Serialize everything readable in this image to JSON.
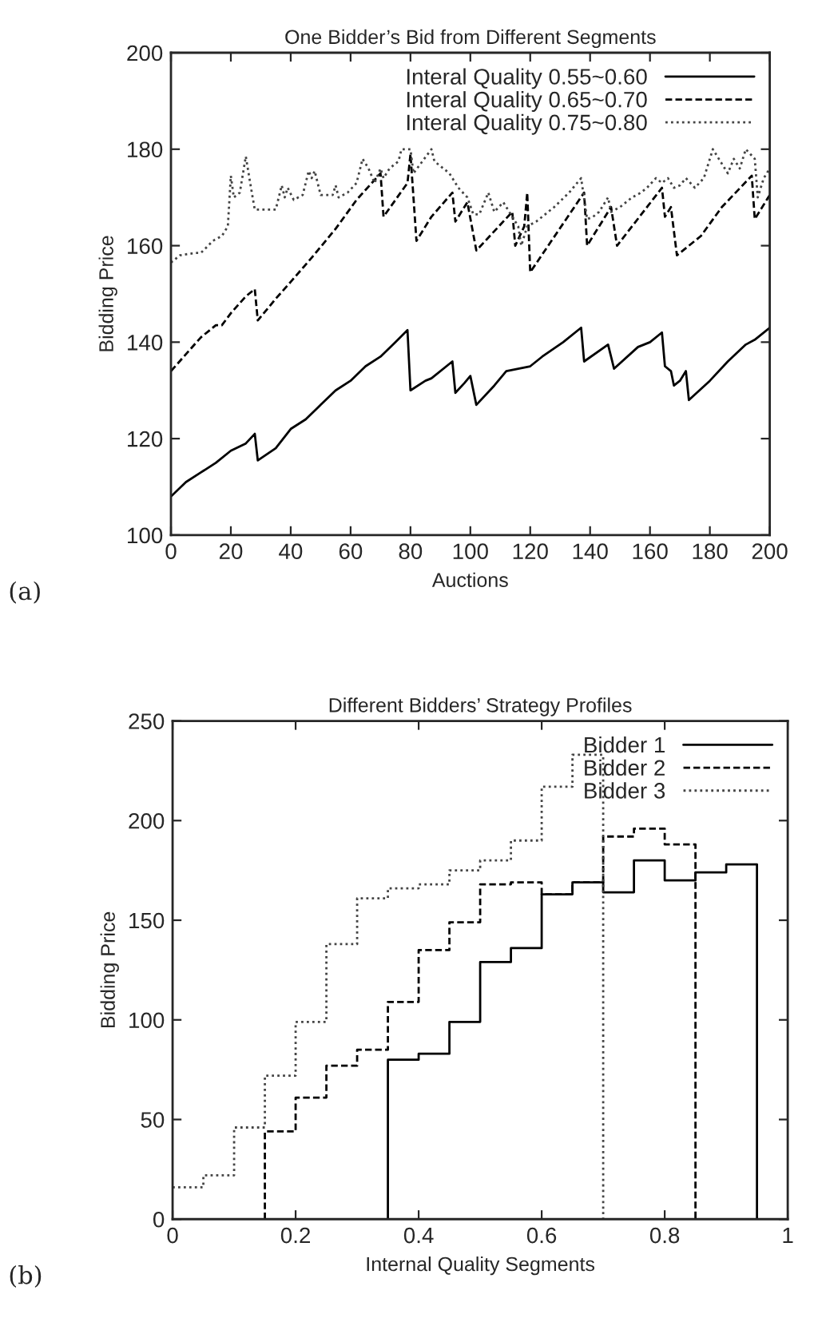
{
  "chart_data": [
    {
      "type": "line",
      "title": "One Bidder’s Bid from Different Segments",
      "xlabel": "Auctions",
      "ylabel": "Bidding Price",
      "xlim": [
        0,
        200
      ],
      "ylim": [
        100,
        200
      ],
      "xticks": [
        0,
        20,
        40,
        60,
        80,
        100,
        120,
        140,
        160,
        180,
        200
      ],
      "yticks": [
        100,
        120,
        140,
        160,
        180,
        200
      ],
      "legend": "top right",
      "grid": false,
      "annotations": [
        "(a)"
      ],
      "series": [
        {
          "name": "Interal Quality 0.55~0.60",
          "color": "#000000",
          "line_style": "solid",
          "x": [
            0,
            5,
            10,
            15,
            20,
            25,
            28,
            29,
            35,
            40,
            45,
            50,
            55,
            60,
            65,
            70,
            75,
            79,
            80,
            85,
            87,
            94,
            95,
            98,
            100,
            102,
            108,
            112,
            116,
            120,
            124,
            131,
            137,
            138,
            146,
            148,
            156,
            160,
            164,
            165,
            167,
            168,
            170,
            172,
            173,
            180,
            186,
            192,
            195,
            200
          ],
          "values": [
            108,
            111,
            113,
            115,
            117.5,
            119,
            121,
            115.5,
            118,
            122,
            124,
            127,
            130,
            132,
            135,
            137,
            140,
            142.5,
            130,
            132,
            132.5,
            136,
            129.5,
            131.5,
            133,
            127,
            131,
            134,
            134.5,
            135,
            137,
            140,
            143,
            136,
            139.5,
            134.5,
            139,
            140,
            142,
            135,
            134,
            131,
            132,
            134,
            128,
            132,
            136,
            139.5,
            140.5,
            143
          ]
        },
        {
          "name": "Interal Quality 0.65~0.70",
          "color": "#000000",
          "line_style": "dashed",
          "x": [
            0,
            5,
            10,
            15,
            17,
            20,
            25,
            28,
            29,
            35,
            40,
            47,
            55,
            62,
            70,
            71,
            79,
            80,
            82,
            87,
            94,
            95,
            99,
            102,
            114,
            115,
            118,
            119,
            120,
            138,
            139,
            147,
            149,
            164,
            165,
            167,
            169,
            177,
            184,
            194,
            195,
            200
          ],
          "values": [
            134,
            137.5,
            141,
            143.5,
            143.5,
            146,
            149.5,
            151,
            144.5,
            149,
            152.5,
            157.5,
            163.5,
            169.5,
            175,
            166,
            173,
            179,
            161,
            166,
            171,
            165,
            169,
            159,
            167,
            160,
            164,
            171,
            154.5,
            171,
            160,
            168,
            160,
            172,
            166,
            168,
            158,
            162,
            168,
            174.5,
            165.5,
            170.5
          ]
        },
        {
          "name": "Interal Quality 0.75~0.80",
          "color": "#444444",
          "line_style": "dotted",
          "x": [
            0,
            3,
            8,
            10,
            14,
            17,
            19,
            20,
            21,
            23,
            25,
            27,
            28,
            31,
            35,
            37,
            38,
            39,
            41,
            44,
            46,
            47,
            48,
            50,
            54,
            55,
            56,
            59,
            62,
            64,
            66,
            68,
            70,
            71,
            73,
            76,
            77,
            80,
            81,
            84,
            87,
            88,
            91,
            93,
            96,
            99,
            101,
            103,
            106,
            108,
            111,
            114,
            116,
            117,
            119,
            122,
            125,
            128,
            133,
            137,
            139,
            141,
            143,
            146,
            147,
            150,
            154,
            157,
            159,
            162,
            164,
            166,
            168,
            170,
            172,
            175,
            178,
            181,
            184,
            186,
            188,
            190,
            192,
            195,
            196,
            198,
            200
          ],
          "values": [
            156.5,
            158,
            158.5,
            158.5,
            161,
            162,
            164,
            174.5,
            170,
            171,
            178.5,
            171,
            167.5,
            167.5,
            167.5,
            172.5,
            170,
            172,
            169.5,
            170.5,
            175.5,
            174,
            175.5,
            170.5,
            170.5,
            172.5,
            170,
            171,
            173,
            178,
            176,
            173,
            176,
            174,
            176,
            177.5,
            180,
            180,
            175,
            177.5,
            180,
            177.5,
            176,
            175,
            172,
            170,
            166.5,
            166.5,
            171,
            167,
            169,
            166,
            164,
            160,
            164,
            165,
            166.5,
            168,
            171,
            174,
            165.5,
            166,
            167,
            170,
            167,
            168,
            170,
            171,
            172,
            174,
            173,
            174,
            172,
            172.5,
            174,
            172,
            174,
            180,
            177,
            175,
            178,
            176,
            180,
            178,
            170,
            174,
            176
          ]
        }
      ]
    },
    {
      "type": "step",
      "title": "Different Bidders’ Strategy Profiles",
      "xlabel": "Internal Quality Segments",
      "ylabel": "Bidding Price",
      "xlim": [
        0,
        1
      ],
      "ylim": [
        0,
        250
      ],
      "xticks": [
        0,
        0.2,
        0.4,
        0.6,
        0.8,
        1
      ],
      "yticks": [
        0,
        50,
        100,
        150,
        200,
        250
      ],
      "legend": "top right",
      "grid": false,
      "annotations": [
        "(b)"
      ],
      "series": [
        {
          "name": "Bidder 1",
          "color": "#000000",
          "line_style": "solid",
          "x": [
            0.35,
            0.35,
            0.4,
            0.45,
            0.5,
            0.55,
            0.6,
            0.65,
            0.7,
            0.75,
            0.8,
            0.85,
            0.9,
            0.95
          ],
          "values": [
            0,
            80,
            83,
            99,
            129,
            136,
            163,
            169,
            164,
            180,
            170,
            174,
            178,
            0
          ]
        },
        {
          "name": "Bidder 2",
          "color": "#000000",
          "line_style": "dashed",
          "x": [
            0.15,
            0.15,
            0.2,
            0.25,
            0.3,
            0.35,
            0.4,
            0.45,
            0.5,
            0.55,
            0.6,
            0.65,
            0.7,
            0.75,
            0.8,
            0.85
          ],
          "values": [
            0,
            44,
            61,
            77,
            85,
            109,
            135,
            149,
            168,
            169,
            163,
            169,
            192,
            196,
            188,
            0
          ]
        },
        {
          "name": "Bidder 3",
          "color": "#444444",
          "line_style": "dotted",
          "x": [
            0,
            0.05,
            0.1,
            0.15,
            0.2,
            0.25,
            0.3,
            0.35,
            0.4,
            0.45,
            0.5,
            0.55,
            0.6,
            0.65,
            0.7
          ],
          "values": [
            16,
            22,
            46,
            72,
            99,
            138,
            161,
            166,
            168,
            175,
            180,
            190,
            217,
            233,
            0
          ]
        }
      ]
    }
  ]
}
